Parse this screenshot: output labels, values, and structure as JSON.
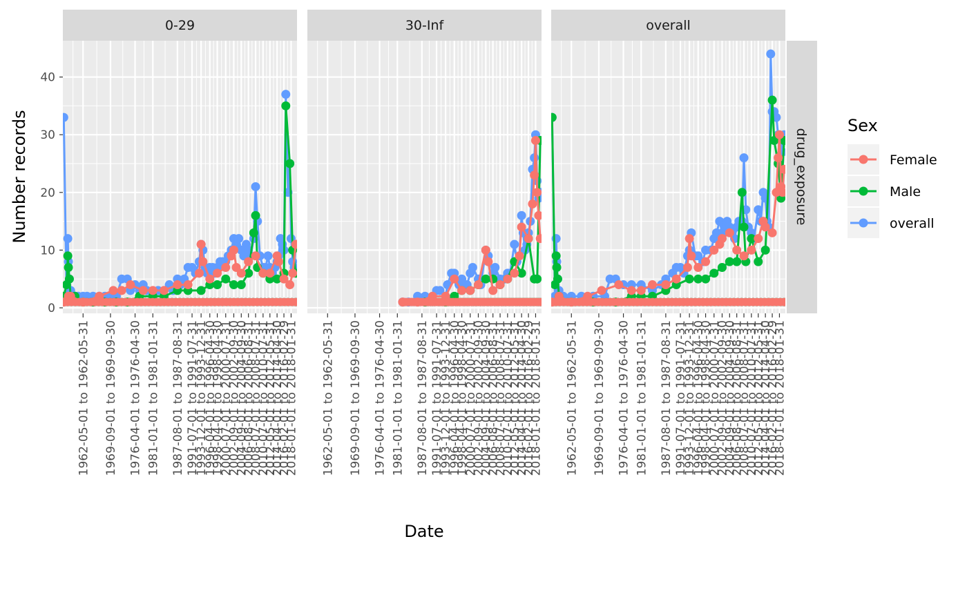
{
  "chart_data": {
    "type": "line",
    "xlabel": "Date",
    "ylabel": "Number records",
    "ylim": [
      0,
      45
    ],
    "y_ticks": [
      0,
      10,
      20,
      30,
      40
    ],
    "grid": true,
    "legend": {
      "title": "Sex",
      "placement": "right",
      "entries": [
        "Female",
        "Male",
        "overall"
      ]
    },
    "row_strip": "drug_exposure",
    "panels": [
      "0-29",
      "30-Inf",
      "overall"
    ],
    "colors": {
      "Female": "#F8766D",
      "Male": "#00BA38",
      "overall": "#619CFF"
    },
    "x_range": [
      "1957-01-01",
      "2019-08-31"
    ],
    "x_ticks": [
      {
        "date": "1962-05-31",
        "label": "1962-05-01 to 1962-05-31"
      },
      {
        "date": "1969-09-30",
        "label": "1969-09-01 to 1969-09-30"
      },
      {
        "date": "1976-04-30",
        "label": "1976-04-01 to 1976-04-30"
      },
      {
        "date": "1981-01-31",
        "label": "1981-01-01 to 1981-01-31"
      },
      {
        "date": "1987-08-31",
        "label": "1987-08-01 to 1987-08-31"
      },
      {
        "date": "1991-07-31",
        "label": "1991-07-01 to 1991-07-31"
      },
      {
        "date": "1993-12-31",
        "label": "1993-12-01 to 1993-12-31"
      },
      {
        "date": "1996-04-30",
        "label": "1996-04-01 to 1996-04-30"
      },
      {
        "date": "1998-04-30",
        "label": "1998-04-01 to 1998-04-30"
      },
      {
        "date": "2000-07-31",
        "label": "2000-07-01 to 2000-07-31"
      },
      {
        "date": "2002-09-30",
        "label": "2002-09-01 to 2002-09-30"
      },
      {
        "date": "2004-09-30",
        "label": "2004-09-01 to 2004-09-30"
      },
      {
        "date": "2006-08-31",
        "label": "2006-08-01 to 2006-08-31"
      },
      {
        "date": "2008-07-31",
        "label": "2008-07-01 to 2008-07-31"
      },
      {
        "date": "2010-07-31",
        "label": "2010-07-01 to 2010-07-31"
      },
      {
        "date": "2012-05-31",
        "label": "2012-05-01 to 2012-05-31"
      },
      {
        "date": "2014-04-30",
        "label": "2014-04-01 to 2014-04-30"
      },
      {
        "date": "2016-02-29",
        "label": "2016-02-01 to 2016-02-29"
      },
      {
        "date": "2018-01-31",
        "label": "2018-01-01 to 2018-01-31"
      }
    ],
    "series": [
      {
        "panel": "0-29",
        "name": "overall",
        "x": [
          "1957-03-31",
          "1957-12-31",
          "1958-04-30",
          "1958-06-30",
          "1958-09-30",
          "1959-01-31",
          "1959-06-30",
          "1960-03-31",
          "1961-01-31",
          "1962-05-31",
          "1963-06-30",
          "1965-01-31",
          "1966-09-30",
          "1968-03-31",
          "1969-09-30",
          "1971-04-30",
          "1972-09-30",
          "1974-03-31",
          "1975-01-31",
          "1976-04-30",
          "1977-06-30",
          "1978-06-30",
          "1979-06-30",
          "1981-01-31",
          "1982-06-30",
          "1984-01-31",
          "1985-06-30",
          "1986-06-30",
          "1987-08-31",
          "1988-06-30",
          "1989-06-30",
          "1990-06-30",
          "1991-07-31",
          "1992-06-30",
          "1993-06-30",
          "1993-12-31",
          "1994-06-30",
          "1995-01-31",
          "1995-07-31",
          "1996-04-30",
          "1997-01-31",
          "1997-07-31",
          "1998-04-30",
          "1999-01-31",
          "1999-09-30",
          "2000-07-31",
          "2001-03-31",
          "2002-01-31",
          "2002-09-30",
          "2003-05-31",
          "2004-01-31",
          "2004-09-30",
          "2005-05-31",
          "2006-01-31",
          "2006-08-31",
          "2007-03-31",
          "2008-01-31",
          "2008-07-31",
          "2009-01-31",
          "2009-09-30",
          "2010-07-31",
          "2011-03-31",
          "2011-11-30",
          "2012-05-31",
          "2013-01-31",
          "2013-09-30",
          "2014-04-30",
          "2014-09-30",
          "2015-03-31",
          "2015-09-30",
          "2016-02-29",
          "2016-08-31",
          "2017-03-31",
          "2017-09-30",
          "2018-01-31",
          "2018-06-30",
          "2018-11-30",
          "2019-04-30"
        ],
        "y": [
          33,
          2,
          12,
          8,
          5,
          3,
          2,
          2,
          2,
          2,
          2,
          2,
          2,
          2,
          2,
          2,
          5,
          5,
          3,
          4,
          3,
          4,
          3,
          2,
          3,
          3,
          4,
          3,
          5,
          4,
          5,
          7,
          7,
          6,
          8,
          11,
          10,
          7,
          6,
          7,
          7,
          6,
          7,
          8,
          8,
          8,
          9,
          10,
          12,
          11,
          12,
          10,
          9,
          11,
          10,
          9,
          12,
          21,
          15,
          9,
          7,
          7,
          9,
          7,
          6,
          7,
          8,
          9,
          12,
          11,
          10,
          37,
          20,
          25,
          12,
          8,
          7,
          11
        ]
      },
      {
        "panel": "0-29",
        "name": "Male",
        "x": [
          "1957-03-31",
          "1957-12-31",
          "1958-04-30",
          "1958-06-30",
          "1958-09-30",
          "1959-01-31",
          "1960-03-31",
          "1962-05-31",
          "1965-01-31",
          "1968-03-31",
          "1971-04-30",
          "1974-03-31",
          "1977-06-30",
          "1981-01-31",
          "1984-01-31",
          "1987-08-31",
          "1990-06-30",
          "1993-12-31",
          "1996-04-30",
          "1998-04-30",
          "2000-07-31",
          "2002-09-30",
          "2004-09-30",
          "2006-08-31",
          "2008-01-31",
          "2008-07-31",
          "2009-01-31",
          "2010-07-31",
          "2012-05-31",
          "2014-04-30",
          "2016-02-29",
          "2016-08-31",
          "2017-09-30",
          "2018-06-30",
          "2019-04-30"
        ],
        "y": [
          2,
          4,
          9,
          7,
          5,
          2,
          2,
          1,
          1,
          1,
          1,
          1,
          2,
          2,
          2,
          3,
          3,
          3,
          4,
          4,
          5,
          4,
          4,
          6,
          13,
          16,
          7,
          6,
          5,
          5,
          6,
          35,
          25,
          10,
          6
        ]
      },
      {
        "panel": "0-29",
        "name": "Female",
        "x": [
          "1957-03-31",
          "1958-06-30",
          "1959-01-31",
          "1962-05-31",
          "1966-09-30",
          "1970-06-30",
          "1972-09-30",
          "1975-01-31",
          "1978-06-30",
          "1981-01-31",
          "1984-01-31",
          "1987-08-31",
          "1990-06-30",
          "1993-06-30",
          "1993-12-31",
          "1994-06-30",
          "1996-04-30",
          "1998-04-30",
          "2000-07-31",
          "2002-01-31",
          "2002-09-30",
          "2003-05-31",
          "2004-09-30",
          "2006-08-31",
          "2008-07-31",
          "2010-07-31",
          "2012-05-31",
          "2014-04-30",
          "2014-09-30",
          "2016-02-29",
          "2017-09-30",
          "2018-06-30",
          "2019-04-30"
        ],
        "y": [
          1,
          2,
          2,
          1,
          2,
          3,
          3,
          4,
          3,
          3,
          3,
          4,
          4,
          6,
          11,
          8,
          5,
          6,
          7,
          9,
          10,
          7,
          6,
          8,
          9,
          6,
          6,
          9,
          8,
          5,
          4,
          6,
          11
        ]
      },
      {
        "panel": "30-Inf",
        "name": "overall",
        "x": [
          "1982-06-30",
          "1984-01-31",
          "1986-06-30",
          "1988-06-30",
          "1990-06-30",
          "1991-07-31",
          "1992-06-30",
          "1993-12-31",
          "1994-06-30",
          "1995-07-31",
          "1996-04-30",
          "1997-07-31",
          "1998-04-30",
          "1999-09-30",
          "2000-07-31",
          "2001-03-31",
          "2002-09-30",
          "2003-05-31",
          "2004-09-30",
          "2005-05-31",
          "2006-08-31",
          "2007-03-31",
          "2008-07-31",
          "2009-09-30",
          "2010-07-31",
          "2011-03-31",
          "2012-05-31",
          "2013-01-31",
          "2013-09-30",
          "2014-04-30",
          "2014-09-30",
          "2015-03-31",
          "2015-09-30",
          "2016-02-29",
          "2016-08-31",
          "2017-03-31",
          "2017-09-30",
          "2018-01-31",
          "2018-06-30",
          "2018-11-30",
          "2019-04-30"
        ],
        "y": [
          1,
          1,
          2,
          2,
          2,
          3,
          3,
          2,
          4,
          6,
          6,
          4,
          5,
          4,
          6,
          7,
          5,
          4,
          10,
          9,
          6,
          7,
          5,
          5,
          6,
          6,
          11,
          8,
          9,
          16,
          13,
          10,
          11,
          13,
          15,
          24,
          26,
          30,
          22,
          19,
          20
        ]
      },
      {
        "panel": "30-Inf",
        "name": "Male",
        "x": [
          "1988-06-30",
          "1993-12-31",
          "1996-04-30",
          "1998-04-30",
          "2000-07-31",
          "2002-09-30",
          "2004-09-30",
          "2006-08-31",
          "2008-07-31",
          "2010-07-31",
          "2012-05-31",
          "2014-04-30",
          "2016-02-29",
          "2017-09-30",
          "2018-06-30",
          "2019-04-30"
        ],
        "y": [
          1,
          1,
          2,
          3,
          3,
          4,
          5,
          5,
          4,
          5,
          8,
          6,
          12,
          5,
          5,
          29
        ]
      },
      {
        "panel": "30-Inf",
        "name": "Female",
        "x": [
          "1982-06-30",
          "1986-06-30",
          "1990-06-30",
          "1993-12-31",
          "1996-04-30",
          "1998-04-30",
          "2000-07-31",
          "2002-09-30",
          "2004-09-30",
          "2005-05-31",
          "2006-08-31",
          "2008-07-31",
          "2010-07-31",
          "2012-05-31",
          "2013-09-30",
          "2014-04-30",
          "2016-02-29",
          "2017-03-31",
          "2017-09-30",
          "2018-01-31",
          "2018-06-30",
          "2018-11-30",
          "2019-04-30"
        ],
        "y": [
          1,
          1,
          2,
          2,
          5,
          3,
          3,
          4,
          10,
          8,
          3,
          4,
          5,
          6,
          9,
          14,
          12,
          18,
          23,
          29,
          20,
          16,
          12
        ]
      },
      {
        "panel": "overall",
        "name": "overall",
        "x": [
          "1957-03-31",
          "1957-12-31",
          "1958-04-30",
          "1958-06-30",
          "1958-09-30",
          "1959-01-31",
          "1960-03-31",
          "1962-05-31",
          "1965-01-31",
          "1968-03-31",
          "1971-04-30",
          "1972-09-30",
          "1974-03-31",
          "1976-04-30",
          "1978-06-30",
          "1981-01-31",
          "1984-01-31",
          "1986-06-30",
          "1987-08-31",
          "1989-06-30",
          "1990-06-30",
          "1991-07-31",
          "1992-06-30",
          "1993-06-30",
          "1993-12-31",
          "1994-06-30",
          "1995-07-31",
          "1996-04-30",
          "1997-07-31",
          "1998-04-30",
          "1999-09-30",
          "2000-07-31",
          "2001-03-31",
          "2002-01-31",
          "2002-09-30",
          "2003-05-31",
          "2004-01-31",
          "2004-09-30",
          "2005-05-31",
          "2006-01-31",
          "2006-08-31",
          "2007-03-31",
          "2008-01-31",
          "2008-07-31",
          "2009-01-31",
          "2009-09-30",
          "2010-07-31",
          "2011-03-31",
          "2012-05-31",
          "2013-01-31",
          "2013-09-30",
          "2014-04-30",
          "2014-09-30",
          "2015-03-31",
          "2015-09-30",
          "2016-02-29",
          "2016-08-31",
          "2017-03-31",
          "2017-09-30",
          "2018-01-31",
          "2018-06-30",
          "2018-11-30",
          "2019-04-30"
        ],
        "y": [
          33,
          2,
          12,
          8,
          5,
          3,
          2,
          2,
          2,
          2,
          2,
          5,
          5,
          4,
          4,
          4,
          3,
          4,
          5,
          6,
          7,
          7,
          6,
          9,
          10,
          13,
          9,
          9,
          8,
          10,
          10,
          12,
          13,
          15,
          13,
          14,
          15,
          14,
          13,
          12,
          14,
          15,
          15,
          26,
          17,
          14,
          13,
          12,
          17,
          15,
          20,
          19,
          15,
          14,
          44,
          34,
          34,
          33,
          30,
          30,
          29,
          27,
          30
        ]
      },
      {
        "panel": "overall",
        "name": "Male",
        "x": [
          "1957-03-31",
          "1957-12-31",
          "1958-04-30",
          "1958-06-30",
          "1958-09-30",
          "1959-01-31",
          "1962-05-31",
          "1968-03-31",
          "1974-03-31",
          "1978-06-30",
          "1981-01-31",
          "1984-01-31",
          "1987-08-31",
          "1990-06-30",
          "1993-12-31",
          "1996-04-30",
          "1998-04-30",
          "2000-07-31",
          "2002-09-30",
          "2004-09-30",
          "2006-08-31",
          "2008-01-31",
          "2008-07-31",
          "2009-01-31",
          "2010-07-31",
          "2012-05-31",
          "2014-04-30",
          "2016-02-29",
          "2016-08-31",
          "2017-09-30",
          "2018-06-30",
          "2019-04-30"
        ],
        "y": [
          33,
          4,
          9,
          7,
          5,
          2,
          1,
          1,
          1,
          2,
          2,
          2,
          3,
          4,
          5,
          5,
          5,
          6,
          7,
          8,
          8,
          20,
          14,
          8,
          12,
          8,
          10,
          36,
          29,
          25,
          19,
          29
        ]
      },
      {
        "panel": "overall",
        "name": "Female",
        "x": [
          "1957-03-31",
          "1959-01-31",
          "1962-05-31",
          "1966-09-30",
          "1970-06-30",
          "1975-01-31",
          "1978-06-30",
          "1981-01-31",
          "1984-01-31",
          "1987-08-31",
          "1990-06-30",
          "1993-06-30",
          "1993-12-31",
          "1994-06-30",
          "1996-04-30",
          "1998-04-30",
          "2000-07-31",
          "2002-01-31",
          "2002-09-30",
          "2004-09-30",
          "2006-08-31",
          "2008-07-31",
          "2010-07-31",
          "2012-05-31",
          "2013-09-30",
          "2014-04-30",
          "2016-02-29",
          "2017-03-31",
          "2017-09-30",
          "2018-01-31",
          "2018-06-30",
          "2018-11-30",
          "2019-04-30"
        ],
        "y": [
          1,
          2,
          1,
          2,
          3,
          4,
          3,
          3,
          4,
          4,
          5,
          7,
          12,
          9,
          7,
          8,
          10,
          11,
          12,
          13,
          10,
          9,
          10,
          12,
          15,
          14,
          13,
          20,
          26,
          30,
          21,
          20,
          24
        ]
      }
    ]
  }
}
